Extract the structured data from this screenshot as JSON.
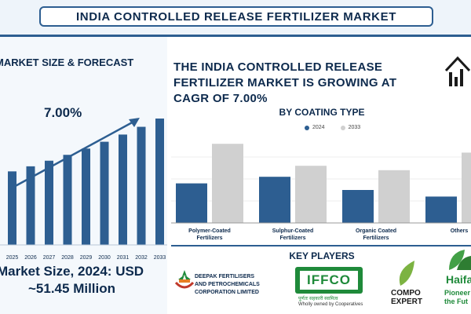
{
  "header": {
    "title": "INDIA CONTROLLED RELEASE FERTILIZER MARKET"
  },
  "left": {
    "heading": "MARKET SIZE & FORECAST",
    "cagr_label": "7.00%",
    "market_size_line1": "Market Size, 2024: USD",
    "market_size_line2": "~51.45 Million"
  },
  "right": {
    "growth_heading": "THE INDIA CONTROLLED RELEASE FERTILIZER MARKET IS GROWING AT CAGR OF 7.00%",
    "coating_title": "BY COATING TYPE",
    "key_players_title": "KEY PLAYERS"
  },
  "key_players": {
    "deepak_line1": "DEEPAK FERTILISERS",
    "deepak_line2": "AND PETROCHEMICALS",
    "deepak_line3": "CORPORATION LIMITED",
    "iffco_name": "IFFCO",
    "iffco_tag1": "पूर्णतः सहकारी स्वामित्व",
    "iffco_tag2": "Wholly owned by Cooperatives",
    "compo_line1": "COMPO",
    "compo_line2": "EXPERT",
    "haifa_name": "Haifa",
    "haifa_tag1": "Pioneer",
    "haifa_tag2": "the Fut"
  },
  "colors": {
    "primary_blue": "#2d5e91",
    "navy": "#0d2a4d",
    "gray": "#d0d0d0",
    "iffco_green": "#1f8a3a"
  },
  "chart_data": [
    {
      "type": "bar",
      "categories": [
        "2025",
        "2026",
        "2027",
        "2028",
        "2029",
        "2030",
        "2031",
        "2032",
        "2033"
      ],
      "values": [
        55.1,
        58.9,
        63.1,
        67.5,
        72.2,
        77.3,
        82.7,
        88.5,
        94.7
      ],
      "annotation": "7.00%",
      "ylim": [
        0,
        100
      ]
    },
    {
      "type": "bar",
      "categories": [
        "Polymer-Coated Fertilizers",
        "Sulphur-Coated Fertilizers",
        "Organic Coated Fertilizers",
        "Others"
      ],
      "series": [
        {
          "name": "2024",
          "values": [
            18,
            21,
            15,
            12
          ]
        },
        {
          "name": "2033",
          "values": [
            36,
            26,
            24,
            32
          ]
        }
      ],
      "ylim": [
        0,
        40
      ],
      "legend": "top"
    }
  ]
}
